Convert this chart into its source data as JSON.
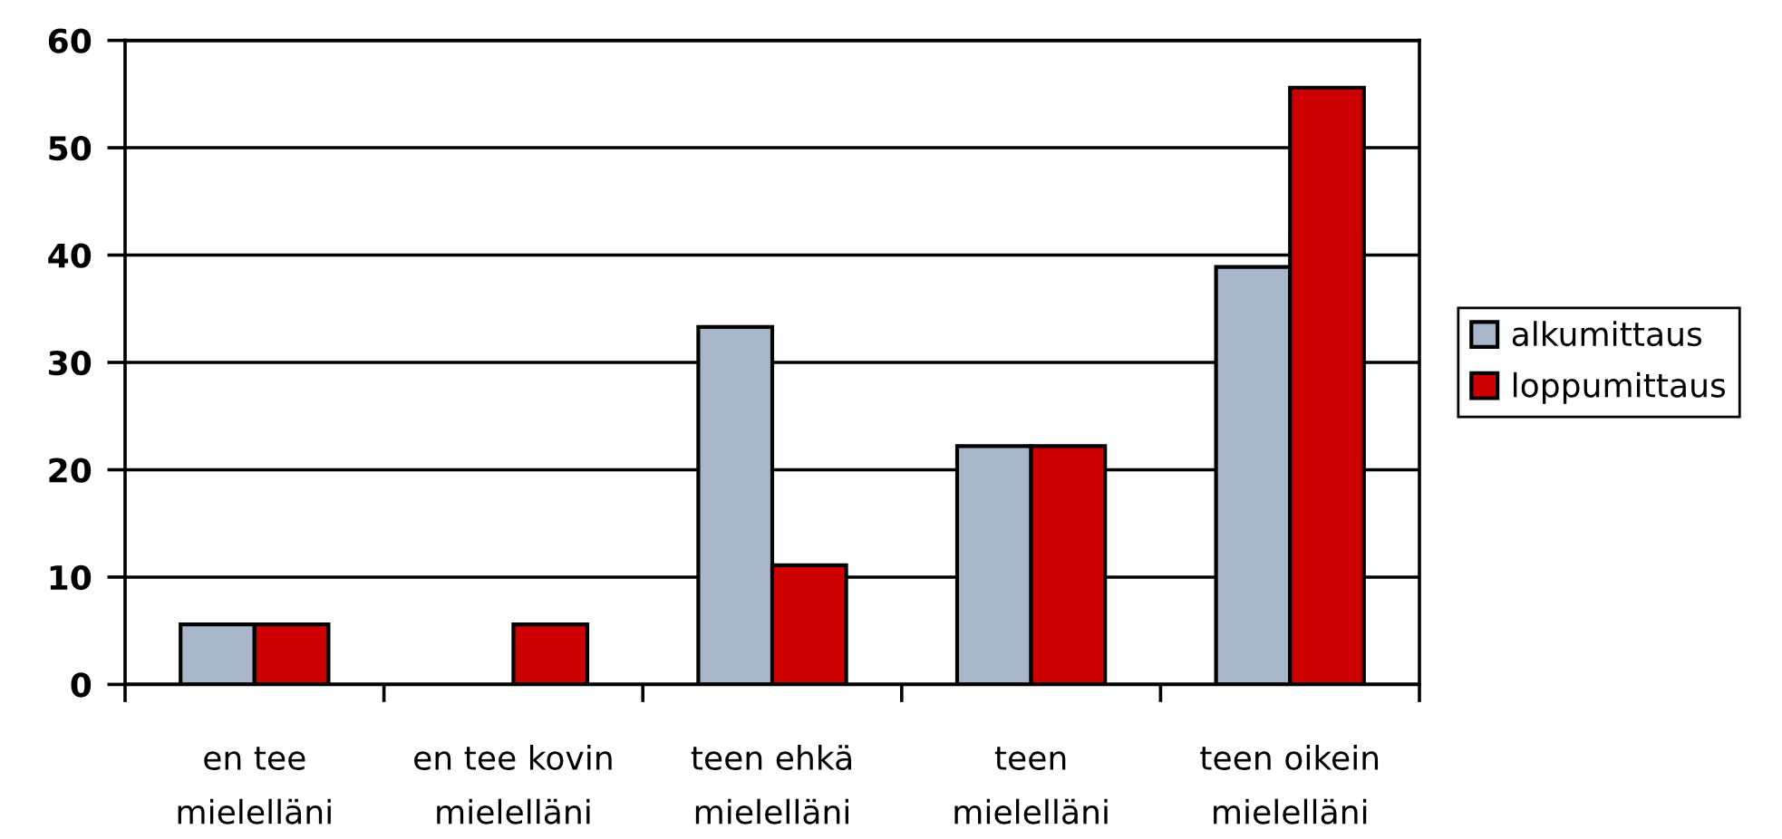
{
  "chart_data": {
    "type": "bar",
    "categories": [
      "en tee\nmielelläni",
      "en tee kovin\nmielelläni",
      "teen ehkä\nmielelläni",
      "teen\nmielelläni",
      "teen oikein\nmielelläni"
    ],
    "series": [
      {
        "name": "alkumittaus",
        "color": "#a7b6c8",
        "values": [
          5.6,
          0,
          33.3,
          22.2,
          38.9
        ]
      },
      {
        "name": "loppumittaus",
        "color": "#cc0000",
        "values": [
          5.6,
          5.6,
          11.1,
          22.2,
          55.6
        ]
      }
    ],
    "ylim": [
      0,
      60
    ],
    "yticks": [
      0,
      10,
      20,
      30,
      40,
      50,
      60
    ],
    "grid": "y",
    "legend": "right"
  }
}
